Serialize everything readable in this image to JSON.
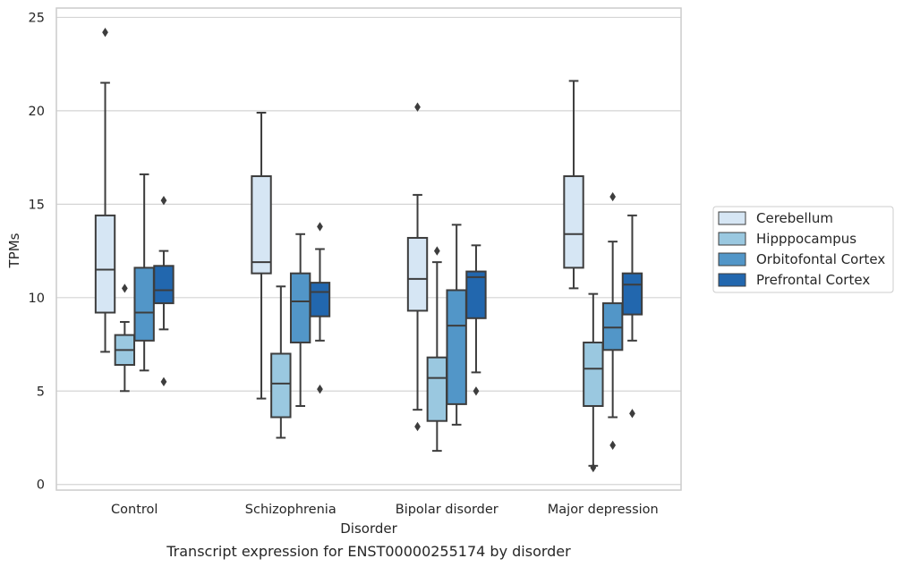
{
  "chart_data": {
    "type": "box",
    "xlabel": "Disorder",
    "ylabel": "TPMs",
    "caption": "Transcript expression for ENST00000255174 by disorder",
    "ylim": [
      -0.3,
      25.5
    ],
    "yticks": [
      "0",
      "5",
      "10",
      "15",
      "20",
      "25"
    ],
    "grid": true,
    "legend_placement": "right",
    "categories": [
      "Control",
      "Schizophrenia",
      "Bipolar disorder",
      "Major depression"
    ],
    "series": [
      {
        "name": "Cerebellum",
        "color": "#d6e6f4",
        "boxes": [
          {
            "whislo": 7.1,
            "q1": 9.2,
            "med": 11.5,
            "q3": 14.4,
            "whishi": 21.5,
            "fliers": [
              24.2
            ]
          },
          {
            "whislo": 4.6,
            "q1": 11.3,
            "med": 11.9,
            "q3": 16.5,
            "whishi": 19.9,
            "fliers": []
          },
          {
            "whislo": 4.0,
            "q1": 9.3,
            "med": 11.0,
            "q3": 13.2,
            "whishi": 15.5,
            "fliers": [
              20.2,
              3.1
            ]
          },
          {
            "whislo": 10.5,
            "q1": 11.6,
            "med": 13.4,
            "q3": 16.5,
            "whishi": 21.6,
            "fliers": []
          }
        ]
      },
      {
        "name": "Hipppocampus",
        "color": "#9ac8e0",
        "boxes": [
          {
            "whislo": 5.0,
            "q1": 6.4,
            "med": 7.2,
            "q3": 8.0,
            "whishi": 8.7,
            "fliers": [
              10.5
            ]
          },
          {
            "whislo": 2.5,
            "q1": 3.6,
            "med": 5.4,
            "q3": 7.0,
            "whishi": 10.6,
            "fliers": []
          },
          {
            "whislo": 1.8,
            "q1": 3.4,
            "med": 5.7,
            "q3": 6.8,
            "whishi": 11.9,
            "fliers": [
              12.5
            ]
          },
          {
            "whislo": 1.0,
            "q1": 4.2,
            "med": 6.2,
            "q3": 7.6,
            "whishi": 10.2,
            "fliers": [
              0.9
            ]
          }
        ]
      },
      {
        "name": "Orbitofontal Cortex",
        "color": "#5296c8",
        "boxes": [
          {
            "whislo": 6.1,
            "q1": 7.7,
            "med": 9.2,
            "q3": 11.6,
            "whishi": 16.6,
            "fliers": []
          },
          {
            "whislo": 4.2,
            "q1": 7.6,
            "med": 9.8,
            "q3": 11.3,
            "whishi": 13.4,
            "fliers": []
          },
          {
            "whislo": 3.2,
            "q1": 4.3,
            "med": 8.5,
            "q3": 10.4,
            "whishi": 13.9,
            "fliers": []
          },
          {
            "whislo": 3.6,
            "q1": 7.2,
            "med": 8.4,
            "q3": 9.7,
            "whishi": 13.0,
            "fliers": [
              15.4,
              2.1
            ]
          }
        ]
      },
      {
        "name": "Prefrontal Cortex",
        "color": "#2267ae",
        "boxes": [
          {
            "whislo": 8.3,
            "q1": 9.7,
            "med": 10.4,
            "q3": 11.7,
            "whishi": 12.5,
            "fliers": [
              15.2,
              5.5
            ]
          },
          {
            "whislo": 7.7,
            "q1": 9.0,
            "med": 10.3,
            "q3": 10.8,
            "whishi": 12.6,
            "fliers": [
              13.8,
              5.1
            ]
          },
          {
            "whislo": 6.0,
            "q1": 8.9,
            "med": 11.1,
            "q3": 11.4,
            "whishi": 12.8,
            "fliers": [
              5.0
            ]
          },
          {
            "whislo": 7.7,
            "q1": 9.1,
            "med": 10.7,
            "q3": 11.3,
            "whishi": 14.4,
            "fliers": [
              3.8
            ]
          }
        ]
      }
    ]
  }
}
